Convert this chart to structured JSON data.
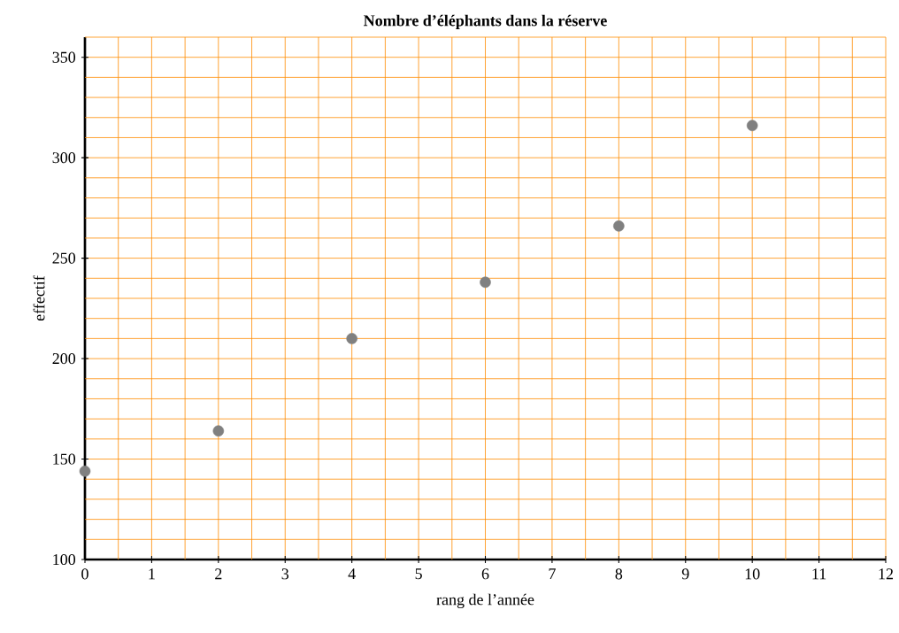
{
  "chart_data": {
    "type": "scatter",
    "title": "**Nombre d’éléphants dans la réserve**",
    "xlabel": "rang de l’année",
    "ylabel": "effectif",
    "x": [
      0,
      2,
      4,
      6,
      8,
      10
    ],
    "values": [
      144,
      164,
      210,
      238,
      266,
      316
    ],
    "color": "#808080",
    "grid": true,
    "xlim": [
      0,
      12
    ],
    "xticks": [
      0,
      {
        "value": 0.5,
        "label": null
      },
      1,
      {
        "value": 1.5,
        "label": null
      },
      2,
      {
        "value": 2.5,
        "label": null
      },
      3,
      {
        "value": 3.5,
        "label": null
      },
      4,
      {
        "value": 4.5,
        "label": null
      },
      5,
      {
        "value": 5.5,
        "label": null
      },
      6,
      {
        "value": 6.5,
        "label": null
      },
      7,
      {
        "value": 7.5,
        "label": null
      },
      8,
      {
        "value": 8.5,
        "label": null
      },
      9,
      {
        "value": 9.5,
        "label": null
      },
      10,
      {
        "value": 10.5,
        "label": null
      },
      11,
      {
        "value": 11.5,
        "label": null
      },
      12
    ],
    "ylim": [
      100,
      360
    ],
    "yticks": [
      100,
      {
        "value": 110,
        "label": null
      },
      {
        "value": 120,
        "label": null
      },
      {
        "value": 130,
        "label": null
      },
      {
        "value": 140,
        "label": null
      },
      150,
      {
        "value": 160,
        "label": null
      },
      {
        "value": 170,
        "label": null
      },
      {
        "value": 180,
        "label": null
      },
      {
        "value": 190,
        "label": null
      },
      200,
      {
        "value": 210,
        "label": null
      },
      {
        "value": 220,
        "label": null
      },
      {
        "value": 230,
        "label": null
      },
      {
        "value": 240,
        "label": null
      },
      250,
      {
        "value": 260,
        "label": null
      },
      {
        "value": 270,
        "label": null
      },
      {
        "value": 280,
        "label": null
      },
      {
        "value": 290,
        "label": null
      },
      300,
      {
        "value": 310,
        "label": null
      },
      {
        "value": 320,
        "label": null
      },
      {
        "value": 330,
        "label": null
      },
      {
        "value": 340,
        "label": null
      },
      350,
      {
        "value": 360,
        "label": null
      }
    ]
  }
}
